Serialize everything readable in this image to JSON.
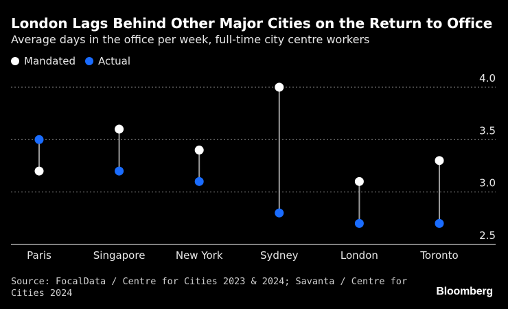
{
  "chart_data": {
    "type": "dumbbell",
    "title": "London Lags Behind Other Major Cities on the Return to Office",
    "subtitle": "Average days in the office per week, full-time city centre workers",
    "categories": [
      "Paris",
      "Singapore",
      "New York",
      "Sydney",
      "London",
      "Toronto"
    ],
    "series": [
      {
        "name": "Mandated",
        "color": "#ffffff",
        "values": [
          3.2,
          3.6,
          3.4,
          4.0,
          3.1,
          3.3
        ]
      },
      {
        "name": "Actual",
        "color": "#1a6cff",
        "values": [
          3.5,
          3.2,
          3.1,
          2.8,
          2.7,
          2.7
        ]
      }
    ],
    "ylim": [
      2.5,
      4.0
    ],
    "yticks": [
      "2.5",
      "3.0",
      "3.5",
      "4.0"
    ],
    "grid": true,
    "source": "Source: FocalData / Centre for Cities 2023 & 2024; Savanta / Centre for Cities 2024",
    "brand": "Bloomberg"
  }
}
